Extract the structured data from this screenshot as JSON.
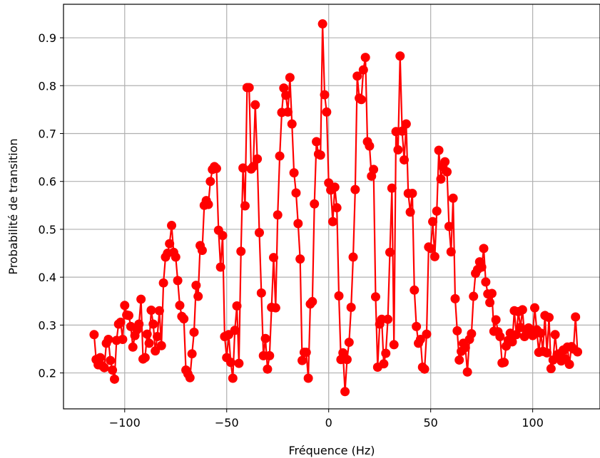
{
  "chart_data": {
    "type": "line",
    "xlabel": "Fréquence (Hz)",
    "ylabel": "Probabilité de transition",
    "xlim": [
      -130,
      133
    ],
    "ylim": [
      0.125,
      0.97
    ],
    "xticks": [
      -100,
      -50,
      0,
      50,
      100
    ],
    "xtick_labels": [
      "−100",
      "−50",
      "0",
      "50",
      "100"
    ],
    "yticks": [
      0.2,
      0.3,
      0.4,
      0.5,
      0.6,
      0.7,
      0.8,
      0.9
    ],
    "ytick_labels": [
      "0.2",
      "0.3",
      "0.4",
      "0.5",
      "0.6",
      "0.7",
      "0.8",
      "0.9"
    ],
    "grid": true,
    "colors": {
      "series": "#ff0000",
      "grid": "#b0b0b0"
    },
    "series": [
      {
        "marker": "circle",
        "points": [
          [
            -115,
            0.28
          ],
          [
            -114,
            0.228
          ],
          [
            -113,
            0.217
          ],
          [
            -112,
            0.232
          ],
          [
            -111,
            0.215
          ],
          [
            -110,
            0.211
          ],
          [
            -109,
            0.262
          ],
          [
            -108,
            0.27
          ],
          [
            -107,
            0.226
          ],
          [
            -106,
            0.206
          ],
          [
            -105,
            0.187
          ],
          [
            -104,
            0.268
          ],
          [
            -103,
            0.302
          ],
          [
            -102,
            0.306
          ],
          [
            -101,
            0.27
          ],
          [
            -100,
            0.341
          ],
          [
            -99,
            0.321
          ],
          [
            -98,
            0.32
          ],
          [
            -97,
            0.297
          ],
          [
            -96,
            0.254
          ],
          [
            -95,
            0.278
          ],
          [
            -94,
            0.29
          ],
          [
            -93,
            0.302
          ],
          [
            -92,
            0.354
          ],
          [
            -91,
            0.229
          ],
          [
            -90,
            0.232
          ],
          [
            -89,
            0.281
          ],
          [
            -88,
            0.262
          ],
          [
            -87,
            0.331
          ],
          [
            -86,
            0.302
          ],
          [
            -85,
            0.246
          ],
          [
            -84,
            0.276
          ],
          [
            -83,
            0.33
          ],
          [
            -82,
            0.257
          ],
          [
            -81,
            0.388
          ],
          [
            -80,
            0.442
          ],
          [
            -79,
            0.45
          ],
          [
            -78,
            0.47
          ],
          [
            -77,
            0.508
          ],
          [
            -76,
            0.452
          ],
          [
            -75,
            0.442
          ],
          [
            -74,
            0.393
          ],
          [
            -73,
            0.341
          ],
          [
            -72,
            0.318
          ],
          [
            -71,
            0.313
          ],
          [
            -70,
            0.206
          ],
          [
            -69,
            0.198
          ],
          [
            -68,
            0.19
          ],
          [
            -67,
            0.24
          ],
          [
            -66,
            0.285
          ],
          [
            -65,
            0.383
          ],
          [
            -64,
            0.36
          ],
          [
            -63,
            0.466
          ],
          [
            -62,
            0.456
          ],
          [
            -61,
            0.55
          ],
          [
            -60,
            0.56
          ],
          [
            -59,
            0.552
          ],
          [
            -58,
            0.6
          ],
          [
            -57,
            0.625
          ],
          [
            -56,
            0.631
          ],
          [
            -55,
            0.627
          ],
          [
            -54,
            0.498
          ],
          [
            -53,
            0.421
          ],
          [
            -52,
            0.487
          ],
          [
            -51,
            0.276
          ],
          [
            -50,
            0.232
          ],
          [
            -49,
            0.28
          ],
          [
            -48,
            0.222
          ],
          [
            -47,
            0.189
          ],
          [
            -46,
            0.289
          ],
          [
            -45,
            0.34
          ],
          [
            -44,
            0.22
          ],
          [
            -43,
            0.454
          ],
          [
            -42,
            0.628
          ],
          [
            -41,
            0.549
          ],
          [
            -40,
            0.796
          ],
          [
            -39,
            0.796
          ],
          [
            -38,
            0.626
          ],
          [
            -37,
            0.631
          ],
          [
            -36,
            0.76
          ],
          [
            -35,
            0.647
          ],
          [
            -34,
            0.493
          ],
          [
            -33,
            0.367
          ],
          [
            -32,
            0.236
          ],
          [
            -31,
            0.272
          ],
          [
            -30,
            0.208
          ],
          [
            -29,
            0.236
          ],
          [
            -28,
            0.337
          ],
          [
            -27,
            0.441
          ],
          [
            -26,
            0.336
          ],
          [
            -25,
            0.53
          ],
          [
            -24,
            0.653
          ],
          [
            -23,
            0.744
          ],
          [
            -22,
            0.795
          ],
          [
            -21,
            0.78
          ],
          [
            -20,
            0.745
          ],
          [
            -19,
            0.817
          ],
          [
            -18,
            0.72
          ],
          [
            -17,
            0.618
          ],
          [
            -16,
            0.576
          ],
          [
            -15,
            0.512
          ],
          [
            -14,
            0.438
          ],
          [
            -13,
            0.226
          ],
          [
            -12,
            0.243
          ],
          [
            -11,
            0.243
          ],
          [
            -10,
            0.189
          ],
          [
            -9,
            0.344
          ],
          [
            -8,
            0.349
          ],
          [
            -7,
            0.553
          ],
          [
            -6,
            0.683
          ],
          [
            -5,
            0.657
          ],
          [
            -4,
            0.655
          ],
          [
            -3,
            0.929
          ],
          [
            -2,
            0.781
          ],
          [
            -1,
            0.745
          ],
          [
            0,
            0.597
          ],
          [
            1,
            0.582
          ],
          [
            2,
            0.516
          ],
          [
            3,
            0.588
          ],
          [
            4,
            0.545
          ],
          [
            5,
            0.361
          ],
          [
            6,
            0.228
          ],
          [
            7,
            0.242
          ],
          [
            8,
            0.161
          ],
          [
            9,
            0.228
          ],
          [
            10,
            0.264
          ],
          [
            11,
            0.337
          ],
          [
            12,
            0.442
          ],
          [
            13,
            0.583
          ],
          [
            14,
            0.82
          ],
          [
            15,
            0.774
          ],
          [
            16,
            0.771
          ],
          [
            17,
            0.833
          ],
          [
            18,
            0.859
          ],
          [
            19,
            0.683
          ],
          [
            20,
            0.674
          ],
          [
            21,
            0.611
          ],
          [
            22,
            0.625
          ],
          [
            23,
            0.359
          ],
          [
            24,
            0.212
          ],
          [
            25,
            0.302
          ],
          [
            26,
            0.312
          ],
          [
            27,
            0.219
          ],
          [
            28,
            0.241
          ],
          [
            29,
            0.312
          ],
          [
            30,
            0.452
          ],
          [
            31,
            0.586
          ],
          [
            32,
            0.259
          ],
          [
            33,
            0.704
          ],
          [
            34,
            0.666
          ],
          [
            35,
            0.862
          ],
          [
            36,
            0.705
          ],
          [
            37,
            0.645
          ],
          [
            38,
            0.72
          ],
          [
            39,
            0.575
          ],
          [
            40,
            0.536
          ],
          [
            41,
            0.575
          ],
          [
            42,
            0.373
          ],
          [
            43,
            0.297
          ],
          [
            44,
            0.262
          ],
          [
            45,
            0.27
          ],
          [
            46,
            0.212
          ],
          [
            47,
            0.208
          ],
          [
            48,
            0.281
          ],
          [
            49,
            0.463
          ],
          [
            50,
            0.46
          ],
          [
            51,
            0.516
          ],
          [
            52,
            0.443
          ],
          [
            53,
            0.538
          ],
          [
            54,
            0.665
          ],
          [
            55,
            0.605
          ],
          [
            56,
            0.63
          ],
          [
            57,
            0.641
          ],
          [
            58,
            0.62
          ],
          [
            59,
            0.506
          ],
          [
            60,
            0.453
          ],
          [
            61,
            0.565
          ],
          [
            62,
            0.355
          ],
          [
            63,
            0.288
          ],
          [
            64,
            0.227
          ],
          [
            65,
            0.245
          ],
          [
            66,
            0.262
          ],
          [
            67,
            0.253
          ],
          [
            68,
            0.202
          ],
          [
            69,
            0.27
          ],
          [
            70,
            0.282
          ],
          [
            71,
            0.36
          ],
          [
            72,
            0.408
          ],
          [
            73,
            0.416
          ],
          [
            74,
            0.432
          ],
          [
            75,
            0.421
          ],
          [
            76,
            0.46
          ],
          [
            77,
            0.39
          ],
          [
            78,
            0.365
          ],
          [
            79,
            0.347
          ],
          [
            80,
            0.366
          ],
          [
            81,
            0.287
          ],
          [
            82,
            0.311
          ],
          [
            83,
            0.286
          ],
          [
            84,
            0.276
          ],
          [
            85,
            0.221
          ],
          [
            86,
            0.222
          ],
          [
            87,
            0.256
          ],
          [
            88,
            0.268
          ],
          [
            89,
            0.283
          ],
          [
            90,
            0.265
          ],
          [
            91,
            0.33
          ],
          [
            92,
            0.28
          ],
          [
            93,
            0.328
          ],
          [
            94,
            0.295
          ],
          [
            95,
            0.332
          ],
          [
            96,
            0.276
          ],
          [
            97,
            0.283
          ],
          [
            98,
            0.294
          ],
          [
            99,
            0.29
          ],
          [
            100,
            0.278
          ],
          [
            101,
            0.336
          ],
          [
            102,
            0.29
          ],
          [
            103,
            0.243
          ],
          [
            104,
            0.283
          ],
          [
            105,
            0.245
          ],
          [
            106,
            0.32
          ],
          [
            107,
            0.242
          ],
          [
            108,
            0.316
          ],
          [
            109,
            0.209
          ],
          [
            110,
            0.227
          ],
          [
            111,
            0.28
          ],
          [
            112,
            0.238
          ],
          [
            113,
            0.24
          ],
          [
            114,
            0.225
          ],
          [
            115,
            0.248
          ],
          [
            116,
            0.229
          ],
          [
            117,
            0.254
          ],
          [
            118,
            0.218
          ],
          [
            119,
            0.255
          ],
          [
            120,
            0.25
          ],
          [
            121,
            0.317
          ],
          [
            122,
            0.244
          ]
        ]
      }
    ]
  }
}
